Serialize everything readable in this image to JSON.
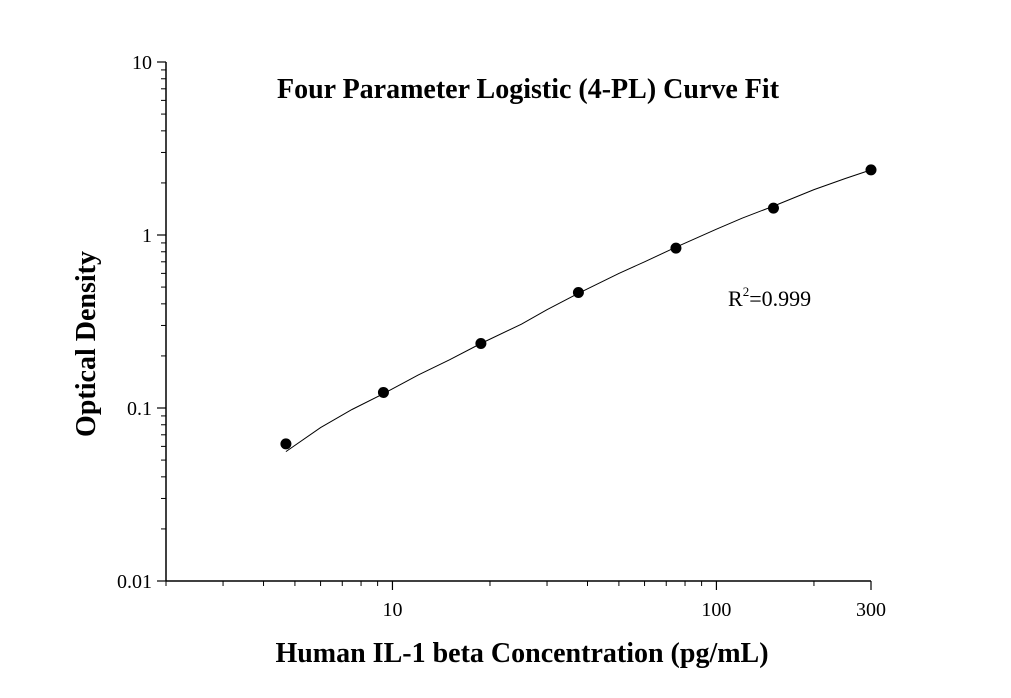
{
  "chart_data": {
    "type": "scatter",
    "title": "Four Parameter Logistic (4-PL) Curve Fit",
    "xlabel": "Human IL-1 beta Concentration (pg/mL)",
    "ylabel": "Optical Density",
    "x_scale": "log",
    "y_scale": "log",
    "xlim": [
      2,
      300
    ],
    "ylim": [
      0.01,
      10
    ],
    "x_ticks": [
      {
        "value": 10,
        "label": "10"
      },
      {
        "value": 100,
        "label": "100"
      },
      {
        "value": 300,
        "label": "300"
      }
    ],
    "y_ticks": [
      {
        "value": 0.01,
        "label": "0.01"
      },
      {
        "value": 0.1,
        "label": "0.1"
      },
      {
        "value": 1,
        "label": "1"
      },
      {
        "value": 10,
        "label": "10"
      }
    ],
    "grid": false,
    "points": {
      "x": [
        4.69,
        9.38,
        18.75,
        37.5,
        75,
        150,
        300
      ],
      "y": [
        0.062,
        0.123,
        0.236,
        0.465,
        0.84,
        1.43,
        2.38
      ]
    },
    "fit_curve": {
      "x": [
        4.69,
        6,
        7.5,
        9.38,
        12,
        15,
        18.75,
        25,
        30,
        37.5,
        50,
        60,
        75,
        100,
        120,
        150,
        200,
        250,
        300
      ],
      "y": [
        0.056,
        0.077,
        0.098,
        0.121,
        0.155,
        0.19,
        0.236,
        0.305,
        0.37,
        0.46,
        0.6,
        0.7,
        0.85,
        1.08,
        1.25,
        1.47,
        1.83,
        2.12,
        2.38
      ]
    },
    "annotation": {
      "prefix": "R",
      "sup": "2",
      "suffix": "=0.999"
    },
    "colors": {
      "marker": "#000000",
      "line": "#000000",
      "axis": "#000000"
    }
  }
}
